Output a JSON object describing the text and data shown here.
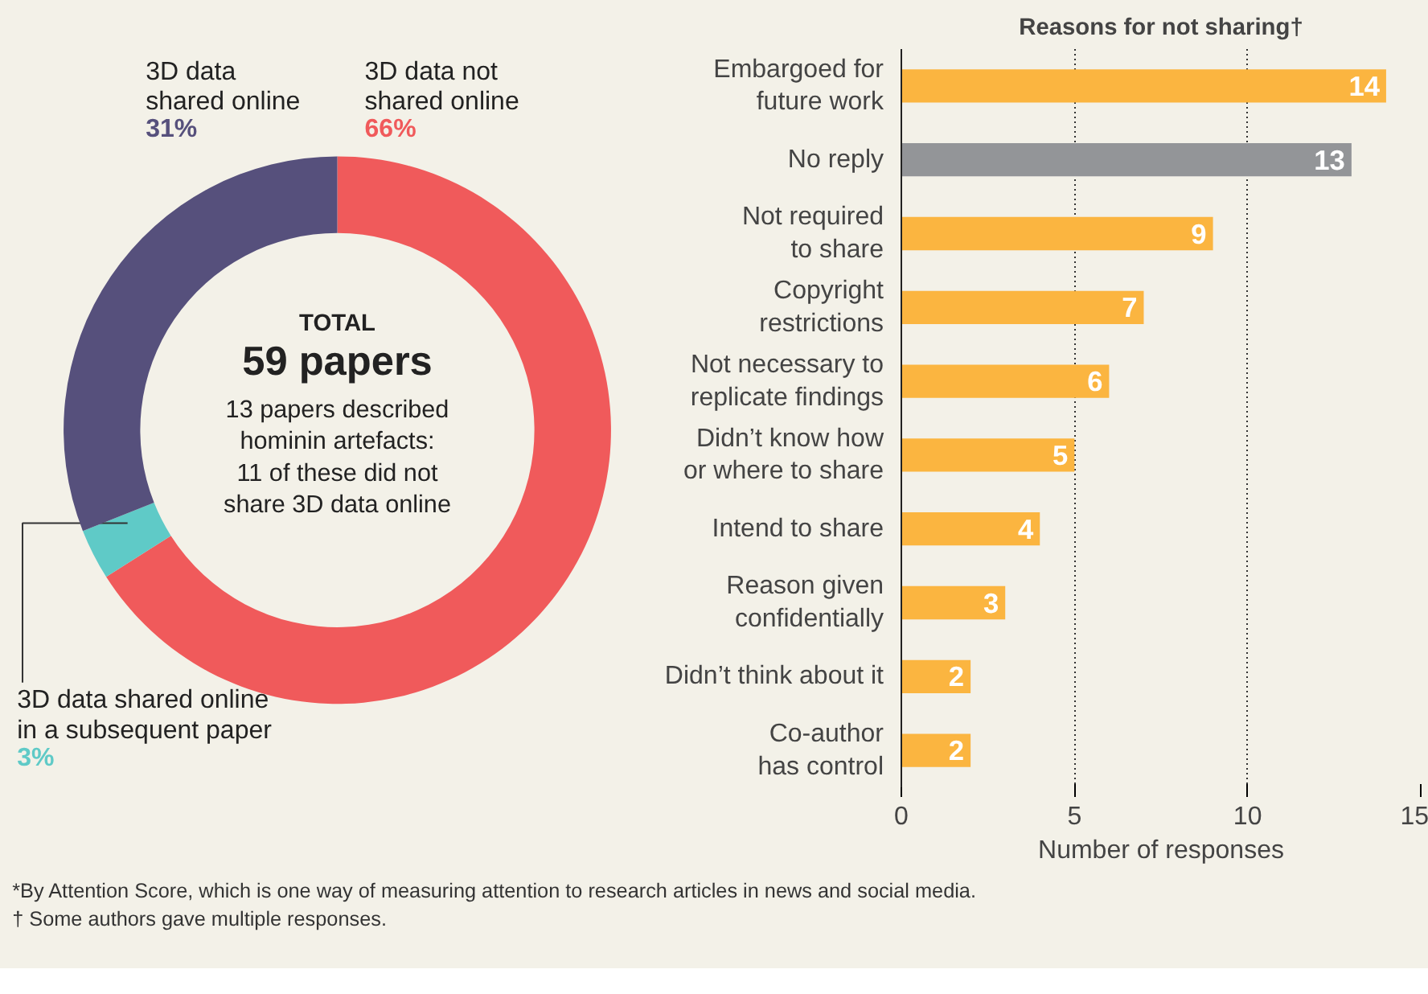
{
  "chart_data": [
    {
      "type": "donut",
      "categories": [
        "3D data not\nshared online",
        "3D data shared online\nin a subsequent paper",
        "3D data\nshared online"
      ],
      "values": [
        66,
        3,
        31
      ],
      "colors": [
        "#f05a5b",
        "#5fcac7",
        "#56507c"
      ],
      "value_labels": [
        "66%",
        "3%",
        "31%"
      ],
      "annotations": [
        "TOTAL",
        "59 papers",
        "13 papers described\nhominin artefacts:\n11 of these did not\nshare 3D data online"
      ]
    },
    {
      "type": "bar",
      "orientation": "horizontal",
      "title": "Reasons for not sharing†",
      "xlabel": "Number of responses",
      "categories": [
        "Embargoed for\nfuture work",
        "No reply",
        "Not required\nto share",
        "Copyright\nrestrictions",
        "Not necessary to\nreplicate findings",
        "Didn’t know how\nor where to share",
        "Intend to share",
        "Reason given\nconfidentially",
        "Didn’t think about it",
        "Co-author\nhas control"
      ],
      "values": [
        14,
        13,
        9,
        7,
        6,
        5,
        4,
        3,
        2,
        2
      ],
      "colors": [
        "#fbb540",
        "#939598",
        "#fbb540",
        "#fbb540",
        "#fbb540",
        "#fbb540",
        "#fbb540",
        "#fbb540",
        "#fbb540",
        "#fbb540"
      ],
      "xlim": [
        0,
        15
      ],
      "xticks": [
        0,
        5,
        10,
        15
      ],
      "grid": "x",
      "data_labels": true
    },
    {
      "type": "other",
      "annotations": [
        "*By Attention Score, which is one way of measuring attention to research articles in news and social media.",
        "† Some authors gave multiple responses."
      ]
    }
  ]
}
